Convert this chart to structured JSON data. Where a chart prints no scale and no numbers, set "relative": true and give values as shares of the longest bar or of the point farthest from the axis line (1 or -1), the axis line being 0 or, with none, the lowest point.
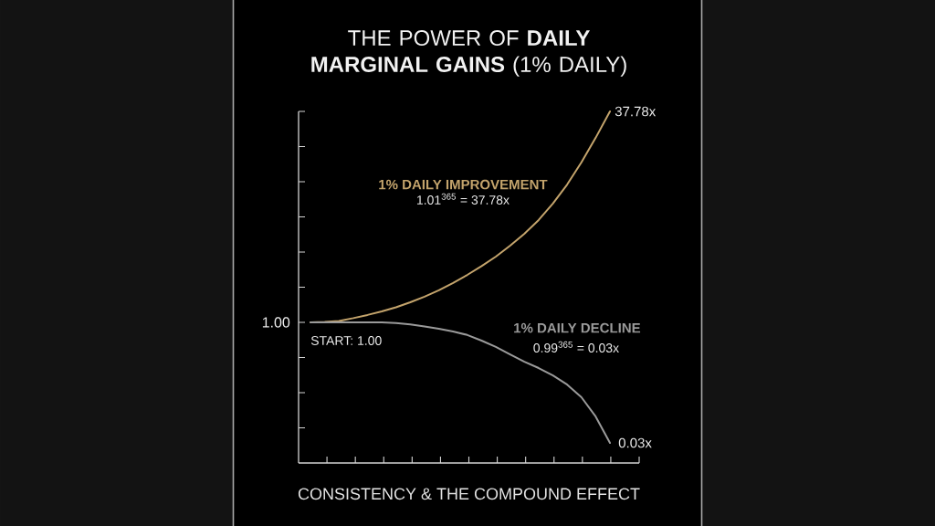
{
  "chart_data": {
    "type": "line",
    "title": "THE POWER OF **DAILY MARGINAL GAINS** (1% DAILY)",
    "xlabel": "CONSISTENCY & THE COMPOUND EFFECT",
    "relative": true,
    "categories": [
      null,
      null,
      null,
      null,
      null,
      null,
      null,
      null,
      null,
      null,
      null,
      null,
      null,
      null,
      null,
      null,
      null,
      null,
      null,
      null,
      null,
      null
    ],
    "series": [
      {
        "name": "1% DAILY IMPROVEMENT",
        "color": "#c4a46c",
        "values": [
          0.4,
          0.401,
          0.404,
          0.412,
          0.421,
          0.431,
          0.443,
          0.457,
          0.473,
          0.491,
          0.512,
          0.535,
          0.56,
          0.587,
          0.618,
          0.652,
          0.691,
          0.738,
          0.792,
          0.855,
          0.925,
          1.0
        ]
      },
      {
        "name": "1% DAILY DECLINE",
        "color": "#9a9a9a",
        "values": [
          0.4,
          0.4,
          0.4,
          0.4,
          0.4,
          0.4,
          0.398,
          0.394,
          0.388,
          0.382,
          0.374,
          0.364,
          0.348,
          0.33,
          0.309,
          0.288,
          0.27,
          0.249,
          0.223,
          0.187,
          0.132,
          0.057
        ]
      }
    ],
    "annotations": [
      "1.01$^{365}$ = 37.78x",
      "0.99$^{365}$ = 0.03x",
      {
        "text": "START: 1.00",
        "y": 0.4
      },
      "1.00",
      "37.78x",
      "0.03x"
    ]
  }
}
